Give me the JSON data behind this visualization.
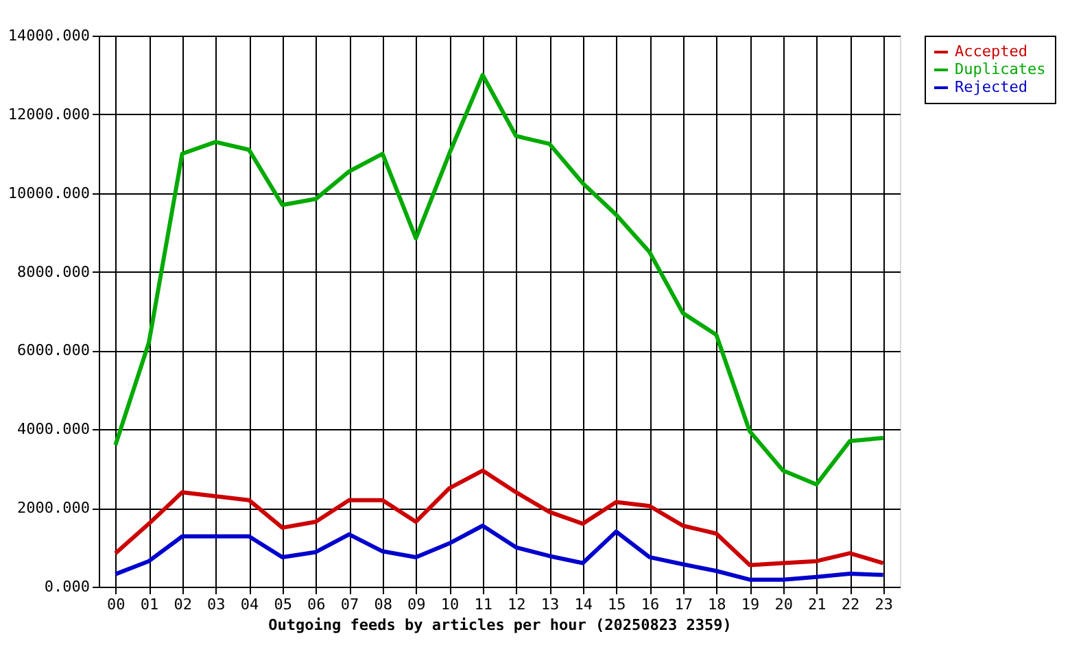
{
  "chart_data": {
    "type": "line",
    "xlabel": "Outgoing feeds by articles per hour (20250823 2359)",
    "categories": [
      "00",
      "01",
      "02",
      "03",
      "04",
      "05",
      "06",
      "07",
      "08",
      "09",
      "10",
      "11",
      "12",
      "13",
      "14",
      "15",
      "16",
      "17",
      "18",
      "19",
      "20",
      "21",
      "22",
      "23"
    ],
    "series": [
      {
        "name": "Accepted",
        "color": "#cc0000",
        "values": [
          850,
          1600,
          2400,
          2300,
          2200,
          1500,
          1650,
          2200,
          2200,
          1650,
          2500,
          2950,
          2400,
          1900,
          1600,
          2150,
          2050,
          1550,
          1350,
          550,
          600,
          650,
          850,
          600
        ]
      },
      {
        "name": "Duplicates",
        "color": "#00aa00",
        "values": [
          3600,
          6200,
          11000,
          11300,
          11100,
          9700,
          9850,
          10550,
          11000,
          8850,
          11000,
          13000,
          11450,
          11250,
          10250,
          9450,
          8500,
          6950,
          6400,
          3950,
          2950,
          2600,
          3700,
          3780
        ]
      },
      {
        "name": "Rejected",
        "color": "#0000cc",
        "values": [
          320,
          650,
          1280,
          1280,
          1280,
          750,
          880,
          1330,
          900,
          750,
          1100,
          1550,
          1000,
          780,
          600,
          1400,
          750,
          570,
          400,
          180,
          180,
          250,
          330,
          300
        ]
      }
    ],
    "ylim": [
      0,
      14000
    ],
    "yticks": [
      {
        "value": 0,
        "label": "0.000"
      },
      {
        "value": 2000,
        "label": "2000.000"
      },
      {
        "value": 4000,
        "label": "4000.000"
      },
      {
        "value": 6000,
        "label": "6000.000"
      },
      {
        "value": 8000,
        "label": "8000.000"
      },
      {
        "value": 10000,
        "label": "10000.000"
      },
      {
        "value": 12000,
        "label": "12000.000"
      },
      {
        "value": 14000,
        "label": "14000.000"
      }
    ],
    "grid": true,
    "legend": "top right",
    "marker": "none",
    "line_style": "solid"
  }
}
